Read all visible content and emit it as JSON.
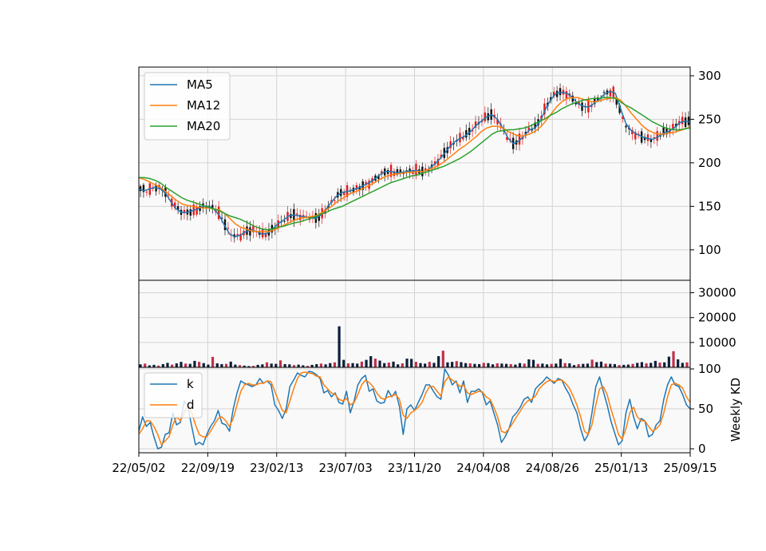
{
  "chart_data": [
    {
      "panel": "price",
      "type": "line",
      "x_ticks": [
        "22/05/02",
        "22/09/19",
        "23/02/13",
        "23/07/03",
        "23/11/20",
        "24/04/08",
        "24/08/26",
        "25/01/13",
        "25/09/15"
      ],
      "y_ticks": [
        "100",
        "150",
        "200",
        "250",
        "300"
      ],
      "ylim": [
        65,
        310
      ],
      "grid": true,
      "legend": "upper-left",
      "series": [
        {
          "name": "MA5",
          "color": "#1f77b4",
          "values": [
            170,
            168,
            170,
            172,
            170,
            165,
            155,
            147,
            143,
            143,
            145,
            147,
            150,
            150,
            147,
            140,
            128,
            118,
            115,
            117,
            121,
            123,
            121,
            118,
            119,
            124,
            130,
            134,
            139,
            140,
            139,
            138,
            137,
            136,
            140,
            147,
            155,
            162,
            166,
            167,
            169,
            171,
            174,
            177,
            181,
            186,
            190,
            190,
            189,
            189,
            190,
            191,
            191,
            190,
            192,
            197,
            203,
            210,
            218,
            224,
            228,
            231,
            236,
            243,
            248,
            253,
            255,
            250,
            240,
            228,
            222,
            225,
            231,
            238,
            240,
            248,
            262,
            273,
            280,
            281,
            280,
            275,
            268,
            265,
            264,
            268,
            273,
            279,
            282,
            280,
            262,
            245,
            237,
            233,
            230,
            228,
            227,
            230,
            234,
            236,
            240,
            246,
            248,
            247
          ]
        },
        {
          "name": "MA12",
          "color": "#ff7f0e",
          "values": [
            183,
            181,
            178,
            175,
            172,
            167,
            162,
            157,
            153,
            151,
            150,
            149,
            148,
            148,
            147,
            146,
            142,
            136,
            130,
            126,
            124,
            122,
            121,
            121,
            121,
            122,
            125,
            128,
            131,
            134,
            136,
            137,
            138,
            139,
            142,
            146,
            150,
            155,
            159,
            163,
            166,
            168,
            171,
            174,
            177,
            181,
            184,
            186,
            187,
            188,
            189,
            189,
            190,
            190,
            192,
            194,
            197,
            201,
            206,
            211,
            216,
            220,
            225,
            230,
            236,
            240,
            242,
            242,
            240,
            236,
            233,
            231,
            231,
            233,
            236,
            241,
            248,
            256,
            264,
            270,
            274,
            275,
            275,
            273,
            271,
            270,
            271,
            273,
            274,
            275,
            272,
            265,
            257,
            250,
            243,
            238,
            235,
            233,
            233,
            234,
            235,
            237,
            239,
            241
          ]
        },
        {
          "name": "MA20",
          "color": "#2ca02c",
          "values": [
            183,
            183,
            182,
            180,
            177,
            172,
            168,
            164,
            160,
            157,
            155,
            153,
            151,
            149,
            147,
            145,
            142,
            139,
            137,
            135,
            132,
            129,
            126,
            124,
            123,
            124,
            126,
            127,
            129,
            131,
            132,
            134,
            136,
            138,
            141,
            143,
            146,
            148,
            150,
            153,
            156,
            159,
            162,
            165,
            168,
            171,
            174,
            177,
            179,
            181,
            183,
            185,
            186,
            188,
            190,
            192,
            194,
            196,
            199,
            202,
            205,
            209,
            213,
            218,
            223,
            228,
            233,
            236,
            237,
            238,
            238,
            239,
            240,
            242,
            245,
            248,
            251,
            255,
            258,
            262,
            265,
            268,
            270,
            272,
            273,
            274,
            274,
            275,
            275,
            274,
            270,
            266,
            263,
            259,
            255,
            251,
            247,
            244,
            241,
            239,
            238,
            238,
            239,
            240
          ]
        }
      ]
    },
    {
      "panel": "volume",
      "type": "bar",
      "y_ticks": [
        "10000",
        "20000",
        "30000"
      ],
      "ylim": [
        0,
        35000
      ],
      "grid": true,
      "values": [
        1200,
        1500,
        800,
        1000,
        700,
        1300,
        1800,
        1100,
        1600,
        2200,
        1500,
        1400,
        2600,
        2200,
        1700,
        1100,
        4200,
        1600,
        1300,
        1400,
        2300,
        1100,
        900,
        700,
        500,
        600,
        1000,
        1200,
        2000,
        1500,
        1400,
        2800,
        1300,
        1200,
        900,
        1100,
        800,
        600,
        1000,
        1300,
        1500,
        1200,
        1700,
        2000,
        16500,
        3000,
        1600,
        1700,
        1500,
        2300,
        3000,
        4500,
        3500,
        2700,
        1700,
        1900,
        2300,
        1200,
        1600,
        3500,
        3400,
        2200,
        1700,
        1500,
        2200,
        1800,
        4500,
        6700,
        2000,
        2200,
        2500,
        2100,
        1700,
        1600,
        1400,
        1300,
        1800,
        1700,
        1200,
        1600,
        1500,
        1400,
        1300,
        1100,
        1700,
        1500,
        3200,
        3000,
        1400,
        1500,
        1200,
        1400,
        1500,
        3400,
        1700,
        1600,
        900,
        1300,
        1400,
        1500,
        3100,
        2100,
        2300,
        1500,
        1400,
        1300,
        900,
        1000,
        1100,
        1400,
        1800,
        2100,
        1600,
        1800,
        2600,
        1900,
        2000,
        4300,
        6500,
        3200,
        1800,
        2000
      ]
    },
    {
      "panel": "kd",
      "type": "line",
      "y_ticks": [
        "0",
        "50",
        "100"
      ],
      "ylim": [
        -5,
        102
      ],
      "ylabel": "Weekly KD",
      "grid": true,
      "legend": "upper-left",
      "series": [
        {
          "name": "k",
          "color": "#1f77b4",
          "values": [
            22,
            40,
            28,
            33,
            15,
            0,
            2,
            18,
            20,
            45,
            30,
            33,
            60,
            52,
            28,
            5,
            8,
            5,
            18,
            28,
            35,
            48,
            32,
            30,
            22,
            50,
            70,
            85,
            82,
            80,
            78,
            80,
            88,
            82,
            85,
            80,
            55,
            48,
            38,
            50,
            78,
            86,
            95,
            92,
            90,
            97,
            96,
            93,
            88,
            70,
            73,
            65,
            70,
            58,
            56,
            72,
            45,
            60,
            80,
            88,
            92,
            72,
            75,
            60,
            57,
            58,
            73,
            65,
            72,
            53,
            18,
            50,
            55,
            48,
            58,
            68,
            80,
            80,
            72,
            65,
            62,
            100,
            92,
            80,
            85,
            70,
            85,
            58,
            72,
            72,
            75,
            70,
            55,
            60,
            45,
            30,
            8,
            15,
            25,
            40,
            45,
            52,
            62,
            65,
            58,
            75,
            80,
            84,
            90,
            86,
            82,
            88,
            86,
            76,
            68,
            55,
            45,
            25,
            10,
            18,
            45,
            78,
            90,
            72,
            55,
            35,
            20,
            5,
            10,
            45,
            62,
            40,
            25,
            38,
            35,
            15,
            18,
            30,
            35,
            62,
            80,
            90,
            80,
            78,
            68,
            55,
            50
          ]
        },
        {
          "name": "d",
          "color": "#ff7f0e",
          "values": [
            18,
            25,
            35,
            35,
            28,
            18,
            5,
            10,
            15,
            30,
            40,
            35,
            45,
            55,
            45,
            30,
            18,
            15,
            15,
            22,
            30,
            38,
            40,
            35,
            28,
            38,
            55,
            72,
            80,
            82,
            80,
            80,
            82,
            82,
            85,
            84,
            72,
            60,
            48,
            45,
            60,
            75,
            88,
            95,
            96,
            95,
            94,
            91,
            90,
            80,
            75,
            70,
            68,
            62,
            60,
            63,
            55,
            58,
            68,
            80,
            86,
            83,
            78,
            70,
            64,
            62,
            65,
            66,
            68,
            62,
            42,
            38,
            45,
            48,
            52,
            58,
            70,
            78,
            78,
            72,
            66,
            84,
            90,
            86,
            83,
            78,
            80,
            70,
            68,
            70,
            72,
            71,
            65,
            62,
            52,
            40,
            22,
            20,
            25,
            32,
            40,
            47,
            55,
            60,
            62,
            66,
            75,
            80,
            84,
            86,
            84,
            86,
            86,
            82,
            76,
            66,
            55,
            40,
            22,
            18,
            30,
            55,
            75,
            78,
            68,
            50,
            35,
            18,
            12,
            25,
            45,
            52,
            40,
            35,
            35,
            28,
            22,
            25,
            30,
            45,
            65,
            80,
            82,
            80,
            76,
            65,
            58
          ]
        }
      ]
    }
  ]
}
